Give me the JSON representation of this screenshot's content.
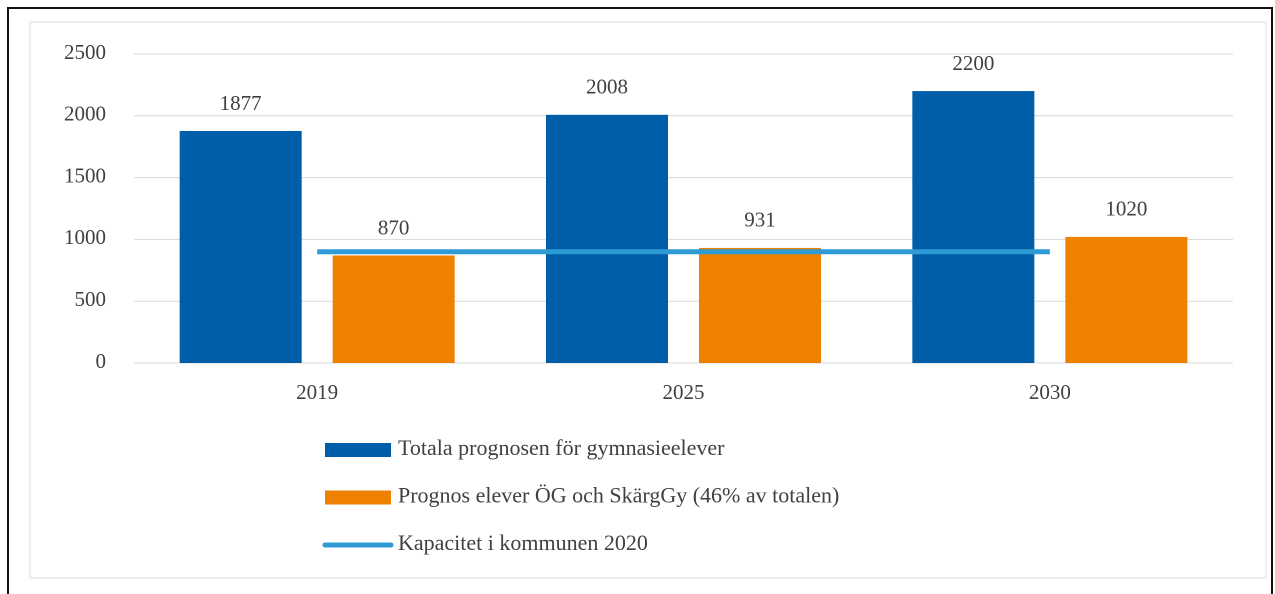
{
  "chart_data": {
    "type": "bar",
    "categories": [
      "2019",
      "2025",
      "2030"
    ],
    "series": [
      {
        "name": "Totala prognosen för gymnasieelever",
        "color": "#005ea8",
        "values": [
          1877,
          2008,
          2200
        ]
      },
      {
        "name": "Prognos elever ÖG och SkärgGy (46% av totalen)",
        "color": "#ee8100",
        "values": [
          870,
          931,
          1020
        ]
      },
      {
        "name": "Kapacitet i kommunen 2020",
        "color": "#2e9bd6",
        "type": "line",
        "values": [
          900,
          900,
          900
        ]
      }
    ],
    "ylim": [
      0,
      2500
    ],
    "yticks": [
      0,
      500,
      1000,
      1500,
      2000,
      2500
    ],
    "grid": true,
    "legend": "bottom"
  }
}
